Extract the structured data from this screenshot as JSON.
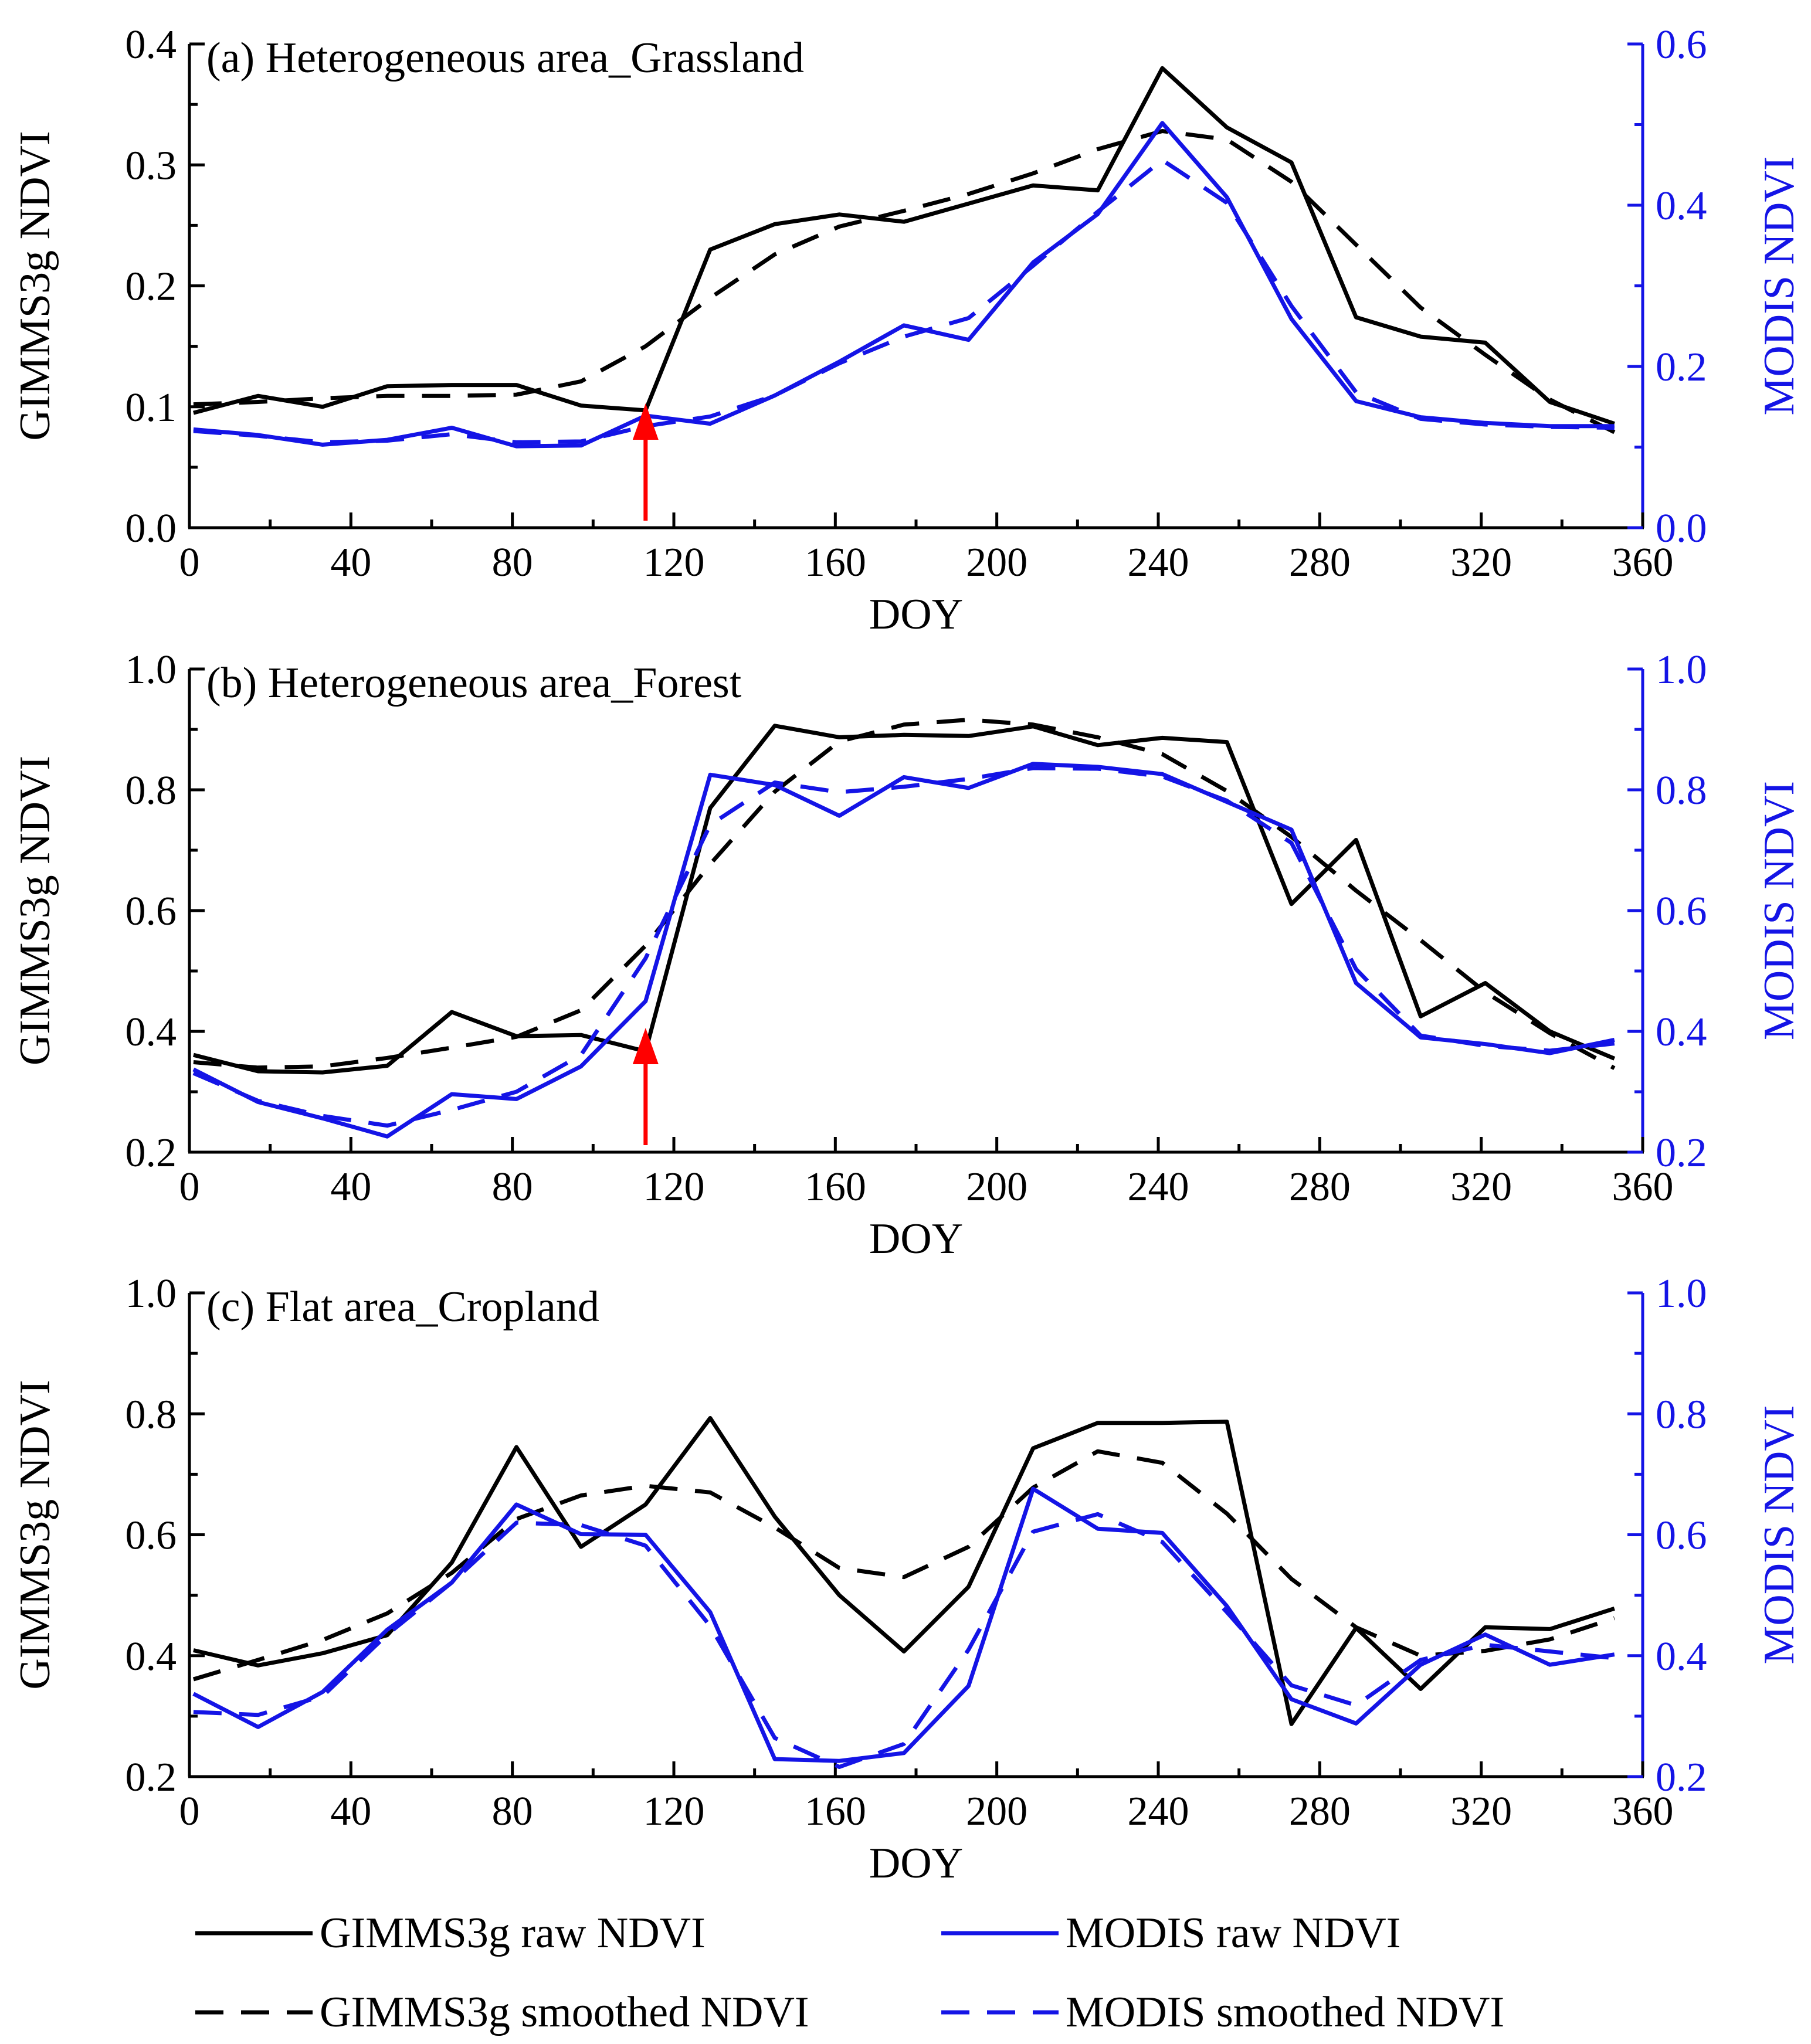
{
  "colors": {
    "gimms": "#000000",
    "modis": "#1414e6",
    "arrow": "#ff0000"
  },
  "chart_data": [
    {
      "type": "line",
      "title": "(a) Heterogeneous area_Grassland",
      "xlabel": "DOY",
      "ylabel_left": "GIMMS3g NDVI",
      "ylabel_right": "MODIS NDVI",
      "xlim": [
        0,
        360
      ],
      "xticks": [
        "0",
        "40",
        "80",
        "120",
        "160",
        "200",
        "240",
        "280",
        "320",
        "360"
      ],
      "ylim_left": [
        0.0,
        0.4
      ],
      "yticks_left": [
        "0.0",
        "0.1",
        "0.2",
        "0.3",
        "0.4"
      ],
      "ylim_right": [
        0.0,
        0.6
      ],
      "yticks_right": [
        "0.0",
        "0.2",
        "0.4",
        "0.6"
      ],
      "annotation_arrow_doy": 113,
      "x": [
        1,
        17,
        33,
        49,
        65,
        81,
        97,
        113,
        129,
        145,
        161,
        177,
        193,
        209,
        225,
        241,
        257,
        273,
        289,
        305,
        321,
        337,
        353
      ],
      "series": [
        {
          "name": "GIMMS3g raw NDVI",
          "axis": "left",
          "style": "solid",
          "color": "gimms",
          "values": [
            0.095,
            0.109,
            0.1,
            0.117,
            0.118,
            0.118,
            0.101,
            0.097,
            0.23,
            0.251,
            0.259,
            0.253,
            0.268,
            0.283,
            0.279,
            0.38,
            0.331,
            0.302,
            0.174,
            0.158,
            0.153,
            0.104,
            0.086
          ]
        },
        {
          "name": "GIMMS3g smoothed NDVI",
          "axis": "left",
          "style": "dashed",
          "color": "gimms",
          "values": [
            0.102,
            0.104,
            0.107,
            0.109,
            0.109,
            0.11,
            0.121,
            0.15,
            0.19,
            0.226,
            0.249,
            0.262,
            0.276,
            0.293,
            0.313,
            0.328,
            0.321,
            0.286,
            0.234,
            0.182,
            0.143,
            0.106,
            0.079
          ]
        },
        {
          "name": "MODIS raw NDVI",
          "axis": "right",
          "style": "solid",
          "color": "modis",
          "values": [
            0.122,
            0.115,
            0.103,
            0.109,
            0.124,
            0.101,
            0.102,
            0.139,
            0.129,
            0.164,
            0.206,
            0.251,
            0.233,
            0.329,
            0.389,
            0.502,
            0.41,
            0.259,
            0.157,
            0.137,
            0.13,
            0.126,
            0.126
          ]
        },
        {
          "name": "MODIS smoothed NDVI",
          "axis": "right",
          "style": "dashed",
          "color": "modis",
          "values": [
            0.12,
            0.114,
            0.106,
            0.108,
            0.116,
            0.106,
            0.107,
            0.126,
            0.138,
            0.164,
            0.204,
            0.237,
            0.26,
            0.325,
            0.392,
            0.456,
            0.403,
            0.275,
            0.168,
            0.135,
            0.128,
            0.125,
            0.124
          ]
        }
      ]
    },
    {
      "type": "line",
      "title": "(b) Heterogeneous area_Forest",
      "xlabel": "DOY",
      "ylabel_left": "GIMMS3g NDVI",
      "ylabel_right": "MODIS NDVI",
      "xlim": [
        0,
        360
      ],
      "xticks": [
        "0",
        "40",
        "80",
        "120",
        "160",
        "200",
        "240",
        "280",
        "320",
        "360"
      ],
      "ylim_left": [
        0.2,
        1.0
      ],
      "yticks_left": [
        "0.2",
        "0.4",
        "0.6",
        "0.8",
        "1.0"
      ],
      "ylim_right": [
        0.2,
        1.0
      ],
      "yticks_right": [
        "0.2",
        "0.4",
        "0.6",
        "0.8",
        "1.0"
      ],
      "annotation_arrow_doy": 113,
      "x": [
        1,
        17,
        33,
        49,
        65,
        81,
        97,
        113,
        129,
        145,
        161,
        177,
        193,
        209,
        225,
        241,
        257,
        273,
        289,
        305,
        321,
        337,
        353
      ],
      "series": [
        {
          "name": "GIMMS3g raw NDVI",
          "axis": "left",
          "style": "solid",
          "color": "gimms",
          "values": [
            0.361,
            0.334,
            0.332,
            0.343,
            0.432,
            0.392,
            0.394,
            0.367,
            0.77,
            0.906,
            0.887,
            0.891,
            0.889,
            0.905,
            0.874,
            0.886,
            0.879,
            0.611,
            0.717,
            0.425,
            0.48,
            0.4,
            0.355
          ]
        },
        {
          "name": "GIMMS3g smoothed NDVI",
          "axis": "left",
          "style": "dashed",
          "color": "gimms",
          "values": [
            0.349,
            0.34,
            0.342,
            0.356,
            0.373,
            0.391,
            0.435,
            0.542,
            0.677,
            0.797,
            0.88,
            0.908,
            0.916,
            0.908,
            0.887,
            0.859,
            0.798,
            0.722,
            0.633,
            0.551,
            0.465,
            0.397,
            0.339
          ]
        },
        {
          "name": "MODIS raw NDVI",
          "axis": "right",
          "style": "solid",
          "color": "modis",
          "values": [
            0.337,
            0.283,
            0.256,
            0.226,
            0.296,
            0.288,
            0.342,
            0.45,
            0.825,
            0.808,
            0.757,
            0.821,
            0.803,
            0.843,
            0.838,
            0.826,
            0.78,
            0.734,
            0.48,
            0.39,
            0.379,
            0.364,
            0.386
          ]
        },
        {
          "name": "MODIS smoothed NDVI",
          "axis": "right",
          "style": "dashed",
          "color": "modis",
          "values": [
            0.331,
            0.285,
            0.26,
            0.244,
            0.27,
            0.3,
            0.361,
            0.521,
            0.742,
            0.812,
            0.796,
            0.805,
            0.818,
            0.836,
            0.835,
            0.822,
            0.782,
            0.712,
            0.503,
            0.393,
            0.376,
            0.368,
            0.38
          ]
        }
      ]
    },
    {
      "type": "line",
      "title": "(c) Flat area_Cropland",
      "xlabel": "DOY",
      "ylabel_left": "GIMMS3g NDVI",
      "ylabel_right": "MODIS NDVI",
      "xlim": [
        0,
        360
      ],
      "xticks": [
        "0",
        "40",
        "80",
        "120",
        "160",
        "200",
        "240",
        "280",
        "320",
        "360"
      ],
      "ylim_left": [
        0.2,
        1.0
      ],
      "yticks_left": [
        "0.2",
        "0.4",
        "0.6",
        "0.8",
        "1.0"
      ],
      "ylim_right": [
        0.2,
        1.0
      ],
      "yticks_right": [
        "0.2",
        "0.4",
        "0.6",
        "0.8",
        "1.0"
      ],
      "annotation_arrow_doy": null,
      "x": [
        1,
        17,
        33,
        49,
        65,
        81,
        97,
        113,
        129,
        145,
        161,
        177,
        193,
        209,
        225,
        241,
        257,
        273,
        289,
        305,
        321,
        337,
        353
      ],
      "series": [
        {
          "name": "GIMMS3g raw NDVI",
          "axis": "left",
          "style": "solid",
          "color": "gimms",
          "values": [
            0.409,
            0.384,
            0.404,
            0.434,
            0.554,
            0.745,
            0.58,
            0.65,
            0.793,
            0.63,
            0.5,
            0.407,
            0.514,
            0.743,
            0.785,
            0.785,
            0.787,
            0.287,
            0.446,
            0.345,
            0.447,
            0.444,
            0.478
          ]
        },
        {
          "name": "GIMMS3g smoothed NDVI",
          "axis": "left",
          "style": "dashed",
          "color": "gimms",
          "values": [
            0.361,
            0.393,
            0.426,
            0.47,
            0.537,
            0.626,
            0.665,
            0.681,
            0.67,
            0.612,
            0.545,
            0.53,
            0.58,
            0.678,
            0.738,
            0.719,
            0.635,
            0.527,
            0.447,
            0.4,
            0.408,
            0.427,
            0.462
          ]
        },
        {
          "name": "MODIS raw NDVI",
          "axis": "right",
          "style": "solid",
          "color": "modis",
          "values": [
            0.337,
            0.282,
            0.34,
            0.443,
            0.521,
            0.65,
            0.601,
            0.6,
            0.472,
            0.229,
            0.226,
            0.239,
            0.35,
            0.676,
            0.61,
            0.603,
            0.482,
            0.328,
            0.288,
            0.385,
            0.435,
            0.385,
            0.402
          ]
        },
        {
          "name": "MODIS smoothed NDVI",
          "axis": "right",
          "style": "dashed",
          "color": "modis",
          "values": [
            0.307,
            0.302,
            0.333,
            0.435,
            0.521,
            0.62,
            0.616,
            0.582,
            0.449,
            0.264,
            0.216,
            0.254,
            0.41,
            0.605,
            0.634,
            0.588,
            0.472,
            0.351,
            0.318,
            0.393,
            0.418,
            0.407,
            0.396
          ]
        }
      ]
    }
  ],
  "legend": [
    {
      "label": "GIMMS3g raw NDVI",
      "style": "solid",
      "color": "gimms"
    },
    {
      "label": "GIMMS3g smoothed NDVI",
      "style": "dashed",
      "color": "gimms"
    },
    {
      "label": "MODIS raw NDVI",
      "style": "solid",
      "color": "modis"
    },
    {
      "label": "MODIS smoothed NDVI",
      "style": "dashed",
      "color": "modis"
    }
  ]
}
